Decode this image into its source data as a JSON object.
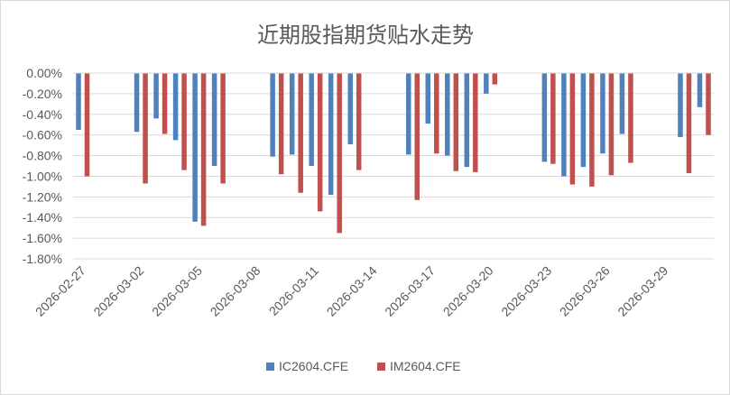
{
  "chart_data": {
    "type": "bar",
    "title": "近期股指期货贴水走势",
    "xlabel": "",
    "ylabel": "",
    "x": [
      "2026-02-27",
      "2026-02-28",
      "2026-03-01",
      "2026-03-02",
      "2026-03-03",
      "2026-03-04",
      "2026-03-05",
      "2026-03-06",
      "2026-03-07",
      "2026-03-08",
      "2026-03-09",
      "2026-03-10",
      "2026-03-11",
      "2026-03-12",
      "2026-03-13",
      "2026-03-14",
      "2026-03-15",
      "2026-03-16",
      "2026-03-17",
      "2026-03-18",
      "2026-03-19",
      "2026-03-20",
      "2026-03-21",
      "2026-03-22",
      "2026-03-23",
      "2026-03-24",
      "2026-03-25",
      "2026-03-26",
      "2026-03-27",
      "2026-03-28",
      "2026-03-29",
      "2026-03-30",
      "2026-03-31"
    ],
    "x_tick_labels": [
      "2026-02-27",
      "2026-03-02",
      "2026-03-05",
      "2026-03-08",
      "2026-03-11",
      "2026-03-14",
      "2026-03-17",
      "2026-03-20",
      "2026-03-23",
      "2026-03-26",
      "2026-03-29"
    ],
    "y_tick_labels": [
      "0.00%",
      "-0.20%",
      "-0.40%",
      "-0.60%",
      "-0.80%",
      "-1.00%",
      "-1.20%",
      "-1.40%",
      "-1.60%",
      "-1.80%"
    ],
    "series": [
      {
        "name": "IC2604.CFE",
        "color": "#4f81bd",
        "values": [
          -0.55,
          null,
          null,
          -0.57,
          -0.44,
          -0.65,
          -1.44,
          -0.9,
          null,
          null,
          -0.81,
          -0.79,
          -0.9,
          -1.18,
          -0.69,
          null,
          null,
          -0.79,
          -0.49,
          -0.8,
          -0.91,
          -0.2,
          null,
          null,
          -0.86,
          -1.0,
          -0.91,
          -0.78,
          -0.59,
          null,
          null,
          -0.62,
          -0.33
        ]
      },
      {
        "name": "IM2604.CFE",
        "color": "#c0504d",
        "values": [
          -1.0,
          null,
          null,
          -1.07,
          -0.59,
          -0.94,
          -1.48,
          -1.07,
          null,
          null,
          -0.98,
          -1.16,
          -1.34,
          -1.55,
          -0.94,
          null,
          null,
          -1.23,
          -0.78,
          -0.95,
          -0.96,
          -0.11,
          null,
          null,
          -0.88,
          -1.08,
          -1.1,
          -0.99,
          -0.87,
          null,
          null,
          -0.97,
          -0.6
        ]
      }
    ],
    "ylim": [
      -1.8,
      0
    ],
    "grid": true,
    "legend_position": "bottom"
  }
}
